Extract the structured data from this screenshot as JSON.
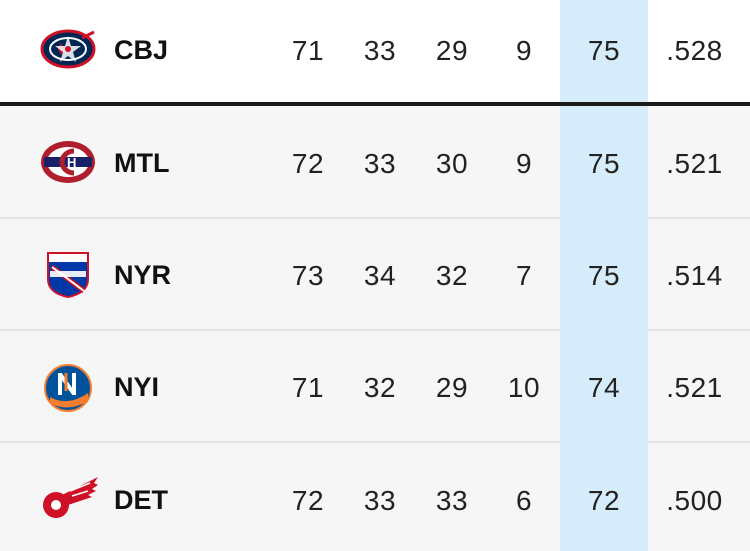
{
  "standings": {
    "rows": [
      {
        "team": "CBJ",
        "logo": "blue-jackets-logo-icon",
        "gp": "71",
        "w": "33",
        "l": "29",
        "otl": "9",
        "pts": "75",
        "pct": ".528"
      },
      {
        "team": "MTL",
        "logo": "canadiens-logo-icon",
        "gp": "72",
        "w": "33",
        "l": "30",
        "otl": "9",
        "pts": "75",
        "pct": ".521"
      },
      {
        "team": "NYR",
        "logo": "rangers-logo-icon",
        "gp": "73",
        "w": "34",
        "l": "32",
        "otl": "7",
        "pts": "75",
        "pct": ".514"
      },
      {
        "team": "NYI",
        "logo": "islanders-logo-icon",
        "gp": "71",
        "w": "32",
        "l": "29",
        "otl": "10",
        "pts": "74",
        "pct": ".521"
      },
      {
        "team": "DET",
        "logo": "red-wings-logo-icon",
        "gp": "72",
        "w": "33",
        "l": "33",
        "otl": "6",
        "pts": "72",
        "pct": ".500"
      }
    ],
    "highlight_color": "#d6ecfb",
    "cutoff_line_color": "#1a1a1a"
  }
}
